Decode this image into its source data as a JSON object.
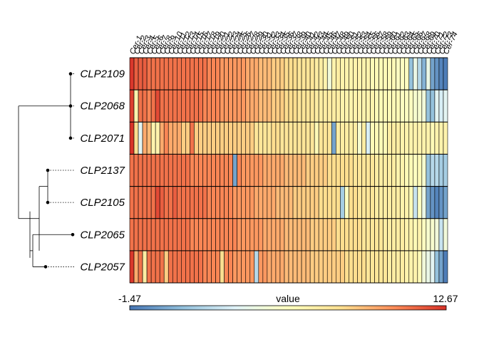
{
  "chart_data": {
    "type": "heatmap",
    "rows": [
      "CLP2109",
      "CLP2068",
      "CLP2071",
      "CLP2137",
      "CLP2105",
      "CLP2065",
      "CLP2057"
    ],
    "columns": [
      "Cer-1",
      "Cer-2",
      "Cer-3",
      "Cer-4",
      "Cer-5",
      "Cer-6",
      "Cer-7",
      "Cer-8",
      "Cer-9",
      "Cer-10",
      "Cer-11",
      "Cer-12",
      "Cer-13",
      "Cer-14",
      "Cer-15",
      "Cer-16",
      "Cer-17",
      "Cer-18",
      "Cer-19",
      "Cer-20",
      "Cer-21",
      "Cer-22",
      "Cer-23",
      "Cer-24",
      "Cer-25",
      "Cer-26",
      "Cer-27",
      "Cer-28",
      "Cer-29",
      "Cer-30",
      "Cer-31",
      "Cer-32",
      "Cer-33",
      "Cer-34",
      "Cer-35",
      "Cer-36",
      "Cer-37",
      "Cer-38",
      "Cer-39",
      "Cer-40",
      "Cer-41",
      "Cer-42",
      "Cer-43",
      "Cer-44",
      "Cer-45",
      "Cer-46",
      "Cer-47",
      "Cer-48",
      "Cer-49",
      "Cer-50",
      "Cer-51",
      "Cer-52",
      "Cer-53",
      "Cer-54",
      "Cer-55",
      "Cer-56",
      "Cer-57",
      "Cer-58",
      "Cer-59",
      "Cer-60",
      "Cer-61",
      "Cer-62",
      "Cer-63",
      "Cer-64",
      "Cer-65",
      "Cer-66",
      "Cer-67",
      "Cer-68",
      "Cer-69",
      "Cer-70",
      "Cer-71",
      "Cer-72",
      "Cer-73",
      "Cer-74"
    ],
    "values": [
      [
        12.5,
        11.5,
        11.5,
        11.5,
        11,
        11,
        11,
        11,
        11,
        11,
        11,
        11,
        11,
        11,
        11,
        11,
        11,
        11,
        10.5,
        10.5,
        10.5,
        10,
        10,
        10,
        10,
        10,
        10,
        9.5,
        9.5,
        9.5,
        9,
        9,
        9,
        8.5,
        8.5,
        8.5,
        8,
        8,
        8,
        7.5,
        7.5,
        7.5,
        7.5,
        7,
        7,
        6.5,
        4.5,
        6.5,
        7,
        6.5,
        6.5,
        6.5,
        6.5,
        6.5,
        6.5,
        6.5,
        6,
        6,
        6,
        6,
        6,
        6,
        5.5,
        5.5,
        5.5,
        1,
        4,
        2,
        0.5,
        4,
        0,
        -0.5,
        -1,
        -1.2
      ],
      [
        12.3,
        6.5,
        11,
        11,
        10.5,
        11,
        12,
        11,
        11,
        11,
        11,
        11,
        11,
        11,
        11,
        11,
        11,
        10.5,
        10.5,
        10.5,
        10.5,
        10,
        10,
        10,
        10,
        10,
        10,
        9.5,
        9.5,
        9.5,
        9,
        9,
        9,
        8.5,
        8.5,
        8.5,
        8,
        8,
        8,
        7.5,
        7.5,
        7.5,
        7.5,
        7,
        7,
        7,
        7,
        7,
        7,
        6.5,
        6.5,
        6.5,
        6.5,
        6.5,
        6.5,
        6.5,
        6.5,
        6,
        6,
        6,
        6,
        6,
        6,
        5.5,
        5.5,
        5.5,
        5,
        5,
        4.5,
        1,
        1,
        3.5,
        3,
        3.5
      ],
      [
        12.6,
        8,
        3.5,
        9.5,
        9,
        6.5,
        6.5,
        9.5,
        10.5,
        9.5,
        9.5,
        9.5,
        8.5,
        8.5,
        11,
        8.5,
        8.5,
        8.5,
        8.5,
        8.5,
        8.5,
        8.5,
        8.5,
        8.5,
        8.5,
        8.5,
        8.5,
        8.5,
        8.5,
        7.5,
        7.5,
        7.5,
        7.5,
        8,
        8,
        7.5,
        7.5,
        7.5,
        7.5,
        7.5,
        7.5,
        7.5,
        7.5,
        6,
        7.5,
        7.5,
        7.5,
        0,
        7,
        7,
        7,
        7,
        7,
        5,
        7,
        3,
        6,
        6,
        6,
        6,
        7,
        7,
        7,
        6.5,
        6.5,
        6.5,
        6.5,
        6.5,
        6.5,
        6.5,
        6,
        6.5,
        6.5,
        6.5
      ],
      [
        11,
        11,
        11,
        11,
        11,
        11,
        11,
        11,
        11,
        11,
        11,
        11,
        11,
        11,
        10.5,
        10.5,
        10.5,
        10.5,
        10.5,
        10.5,
        10.5,
        10.5,
        10.5,
        10.5,
        0,
        10.5,
        10,
        10,
        10,
        10,
        10,
        9.5,
        9.5,
        9.5,
        9.5,
        9.5,
        9,
        9,
        9,
        9,
        9,
        8.5,
        8.5,
        8.5,
        8.5,
        8.5,
        8,
        8,
        8,
        8,
        8,
        8,
        7.5,
        7.5,
        7.5,
        7.5,
        7.5,
        7,
        7,
        7,
        7,
        7,
        6.5,
        6.5,
        6,
        6,
        5.5,
        6,
        5,
        1,
        2,
        2,
        1.5,
        1.5
      ],
      [
        11,
        11,
        11,
        11,
        11,
        11,
        12,
        11.5,
        11,
        11,
        11.5,
        11,
        11,
        11,
        11,
        11,
        11,
        11,
        10.5,
        10.5,
        10.5,
        10.5,
        10.5,
        10.5,
        10,
        10,
        10,
        10,
        10,
        9.5,
        9.5,
        9.5,
        9.5,
        9.5,
        9,
        9,
        9,
        9,
        8.5,
        8.5,
        8.5,
        8.5,
        8.5,
        8.5,
        8,
        8,
        8,
        8,
        8,
        1.5,
        5.5,
        8,
        8,
        7.5,
        7.5,
        7.5,
        7.5,
        7,
        7,
        7,
        7,
        7,
        7,
        6.5,
        6.5,
        6,
        2.5,
        5.5,
        4,
        0,
        -0.5,
        -1,
        -0.5,
        0
      ],
      [
        11,
        11,
        11,
        11,
        11,
        11,
        11,
        11,
        11,
        11,
        11,
        11,
        11,
        11,
        10.5,
        10.5,
        10.5,
        10.5,
        10.5,
        10.5,
        10.5,
        10.5,
        10.5,
        10.5,
        10.5,
        10,
        10,
        10,
        10,
        10,
        10,
        9.5,
        9.5,
        9.5,
        9.5,
        9.5,
        9,
        9,
        9,
        9,
        9,
        9,
        8.5,
        8.5,
        8.5,
        8.5,
        8.5,
        8.5,
        8,
        8,
        8,
        8,
        8,
        8,
        7.5,
        7.5,
        7.5,
        7.5,
        7.5,
        7,
        7,
        7,
        7,
        7,
        6.5,
        6.5,
        6,
        6.5,
        5.5,
        5,
        5,
        4.5,
        2.5,
        4.5
      ],
      [
        12.5,
        9.5,
        11,
        7,
        11,
        11,
        11,
        11,
        8.5,
        11,
        11,
        11,
        11,
        11,
        11,
        11,
        11,
        10.5,
        10.5,
        10.5,
        10.5,
        8,
        10.5,
        10.5,
        10,
        10,
        10,
        10,
        10,
        2,
        10,
        10,
        9.5,
        9.5,
        9.5,
        9.5,
        9,
        9,
        9,
        9,
        9,
        9,
        8.5,
        8.5,
        8.5,
        8.5,
        8.5,
        8.5,
        8.5,
        8.5,
        8,
        8,
        8,
        8,
        8,
        7.5,
        7.5,
        7.5,
        7.5,
        7.5,
        7,
        7,
        7,
        7,
        6.5,
        6.5,
        6.5,
        6,
        4.5,
        4,
        3.5,
        1,
        0,
        -1.2
      ]
    ],
    "colorscale": {
      "min": -1.47,
      "max": 12.67,
      "label": "value",
      "colors": [
        "#4575b4",
        "#91bfdb",
        "#e0f3f8",
        "#ffffbf",
        "#fee090",
        "#fc8d59",
        "#d73027"
      ]
    },
    "dendrogram_leaf_order": [
      "CLP2109",
      "CLP2068",
      "CLP2071",
      "CLP2137",
      "CLP2105",
      "CLP2065",
      "CLP2057"
    ]
  },
  "legend": {
    "min_label": "-1.47",
    "max_label": "12.67",
    "title": "value"
  }
}
